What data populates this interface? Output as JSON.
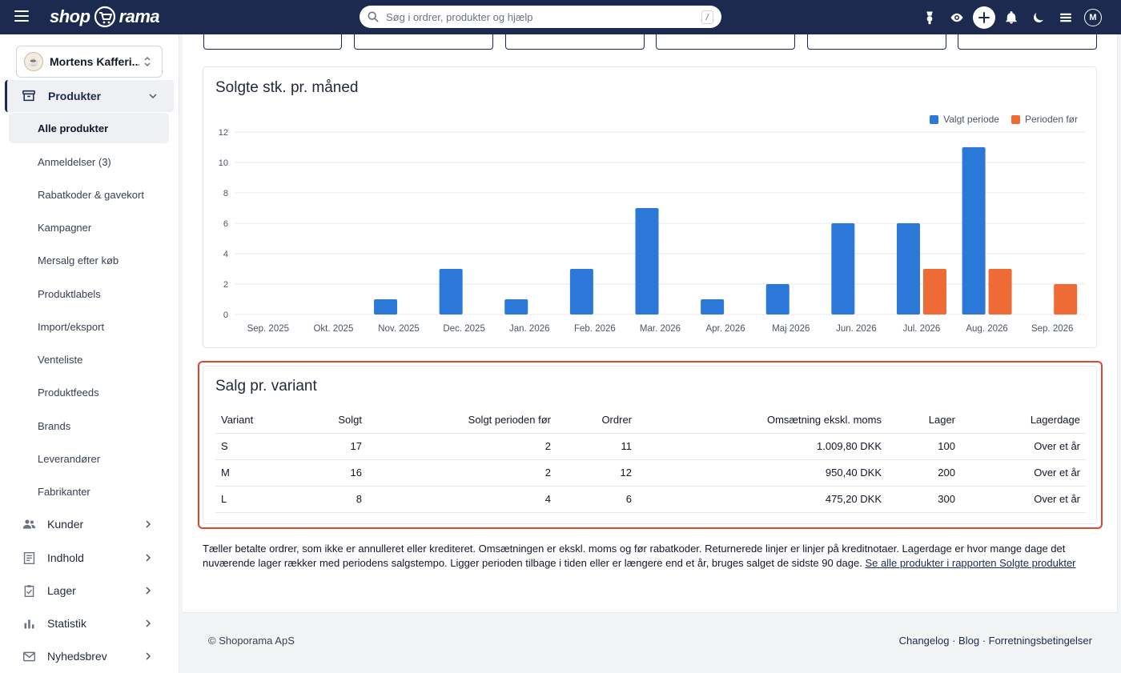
{
  "header": {
    "brand_left": "shop",
    "brand_right": "rama",
    "search": {
      "placeholder": "Søg i ordrer, produkter og hjælp",
      "shortcut": "/"
    },
    "avatar_initial": "M"
  },
  "sidebar": {
    "shop_name": "Mortens Kafferi...",
    "main_item": "Produkter",
    "sub_items": [
      "Alle produkter",
      "Anmeldelser (3)",
      "Rabatkoder & gavekort",
      "Kampagner",
      "Mersalg efter køb",
      "Produktlabels",
      "Import/eksport",
      "Venteliste",
      "Produktfeeds",
      "Brands",
      "Leverandører",
      "Fabrikanter"
    ],
    "sections": [
      "Kunder",
      "Indhold",
      "Lager",
      "Statistik",
      "Nyhedsbrev"
    ]
  },
  "chart": {
    "title": "Solgte stk. pr. måned"
  },
  "chart_data": {
    "type": "bar",
    "title": "Solgte stk. pr. måned",
    "categories": [
      "Sep. 2025",
      "Okt. 2025",
      "Nov. 2025",
      "Dec. 2025",
      "Jan. 2026",
      "Feb. 2026",
      "Mar. 2026",
      "Apr. 2026",
      "Maj 2026",
      "Jun. 2026",
      "Jul. 2026",
      "Aug. 2026",
      "Sep. 2026"
    ],
    "series": [
      {
        "name": "Valgt periode",
        "color": "#2b78d9",
        "values": [
          0,
          0,
          1,
          3,
          1,
          3,
          7,
          1,
          2,
          6,
          6,
          11,
          0
        ]
      },
      {
        "name": "Perioden før",
        "color": "#ee6a37",
        "values": [
          0,
          0,
          0,
          0,
          0,
          0,
          0,
          0,
          0,
          0,
          3,
          3,
          2
        ]
      }
    ],
    "ylim": [
      0,
      12
    ],
    "yticks": [
      0,
      2,
      4,
      6,
      8,
      10,
      12
    ],
    "grid": true,
    "legend_position": "top-right"
  },
  "variants": {
    "title": "Salg pr. variant",
    "columns": [
      "Variant",
      "Solgt",
      "Solgt perioden før",
      "Ordrer",
      "Omsætning ekskl. moms",
      "Lager",
      "Lagerdage"
    ],
    "rows": [
      [
        "S",
        "17",
        "2",
        "11",
        "1.009,80 DKK",
        "100",
        "Over et år"
      ],
      [
        "M",
        "16",
        "2",
        "12",
        "950,40 DKK",
        "200",
        "Over et år"
      ],
      [
        "L",
        "8",
        "4",
        "6",
        "475,20 DKK",
        "300",
        "Over et år"
      ]
    ]
  },
  "note": {
    "text": "Tæller betalte ordrer, som ikke er annulleret eller krediteret. Omsætningen er ekskl. moms og før rabatkoder. Returnerede linjer er linjer på kreditnotaer. Lagerdage er hvor mange dage det nuværende lager rækker med periodens salgstempo. Ligger perioden tilbage i tiden eller er længere end et år, bruges salget de sidste 90 dage.",
    "link": "Se alle produkter i rapporten Solgte produkter"
  },
  "footer": {
    "copyright": "© Shoporama ApS",
    "links": [
      "Changelog",
      "Blog",
      "Forretningsbetingelser"
    ],
    "separator": " · "
  }
}
